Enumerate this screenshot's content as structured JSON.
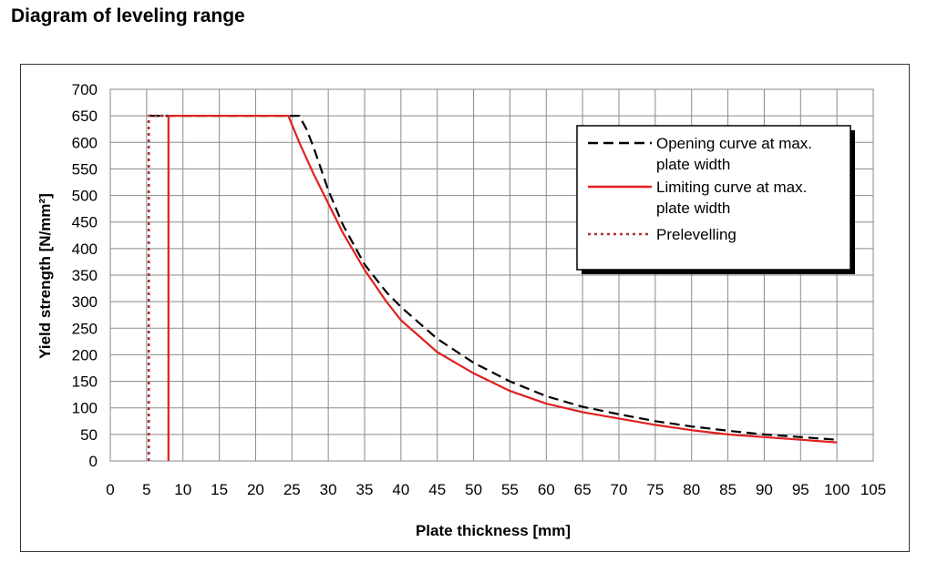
{
  "page": {
    "title": "Diagram of leveling range"
  },
  "chart_data": {
    "type": "line",
    "xlabel": "Plate thickness [mm]",
    "ylabel": "Yield strength [N/mm²]",
    "xlim": [
      0,
      105
    ],
    "ylim": [
      0,
      700
    ],
    "xticks": [
      0,
      5,
      10,
      15,
      20,
      25,
      30,
      35,
      40,
      45,
      50,
      55,
      60,
      65,
      70,
      75,
      80,
      85,
      90,
      95,
      100,
      105
    ],
    "yticks": [
      0,
      50,
      100,
      150,
      200,
      250,
      300,
      350,
      400,
      450,
      500,
      550,
      600,
      650,
      700
    ],
    "grid": true,
    "legend_position": "top-right",
    "series": [
      {
        "name": "Opening curve at max. plate width",
        "color": "#000000",
        "style": "dashed",
        "x": [
          5.5,
          26,
          27,
          28,
          30,
          32,
          35,
          38,
          40,
          45,
          50,
          55,
          60,
          65,
          70,
          75,
          80,
          85,
          90,
          95,
          100
        ],
        "y": [
          650,
          650,
          625,
          590,
          510,
          445,
          370,
          318,
          290,
          230,
          185,
          150,
          122,
          102,
          88,
          75,
          65,
          57,
          50,
          45,
          40
        ]
      },
      {
        "name": "Limiting curve at max. plate width",
        "color": "#e02020",
        "style": "solid",
        "x": [
          8,
          8,
          24.5,
          26,
          28,
          30,
          32,
          35,
          38,
          40,
          45,
          50,
          55,
          60,
          65,
          70,
          75,
          80,
          85,
          90,
          95,
          100
        ],
        "y": [
          0,
          650,
          650,
          600,
          540,
          485,
          430,
          360,
          300,
          265,
          205,
          165,
          132,
          108,
          92,
          80,
          68,
          58,
          50,
          45,
          40,
          35
        ]
      },
      {
        "name": "Prelevelling",
        "color": "#b03030",
        "style": "dotted",
        "x": [
          5.3,
          5.3,
          8
        ],
        "y": [
          0,
          650,
          650
        ]
      }
    ]
  }
}
